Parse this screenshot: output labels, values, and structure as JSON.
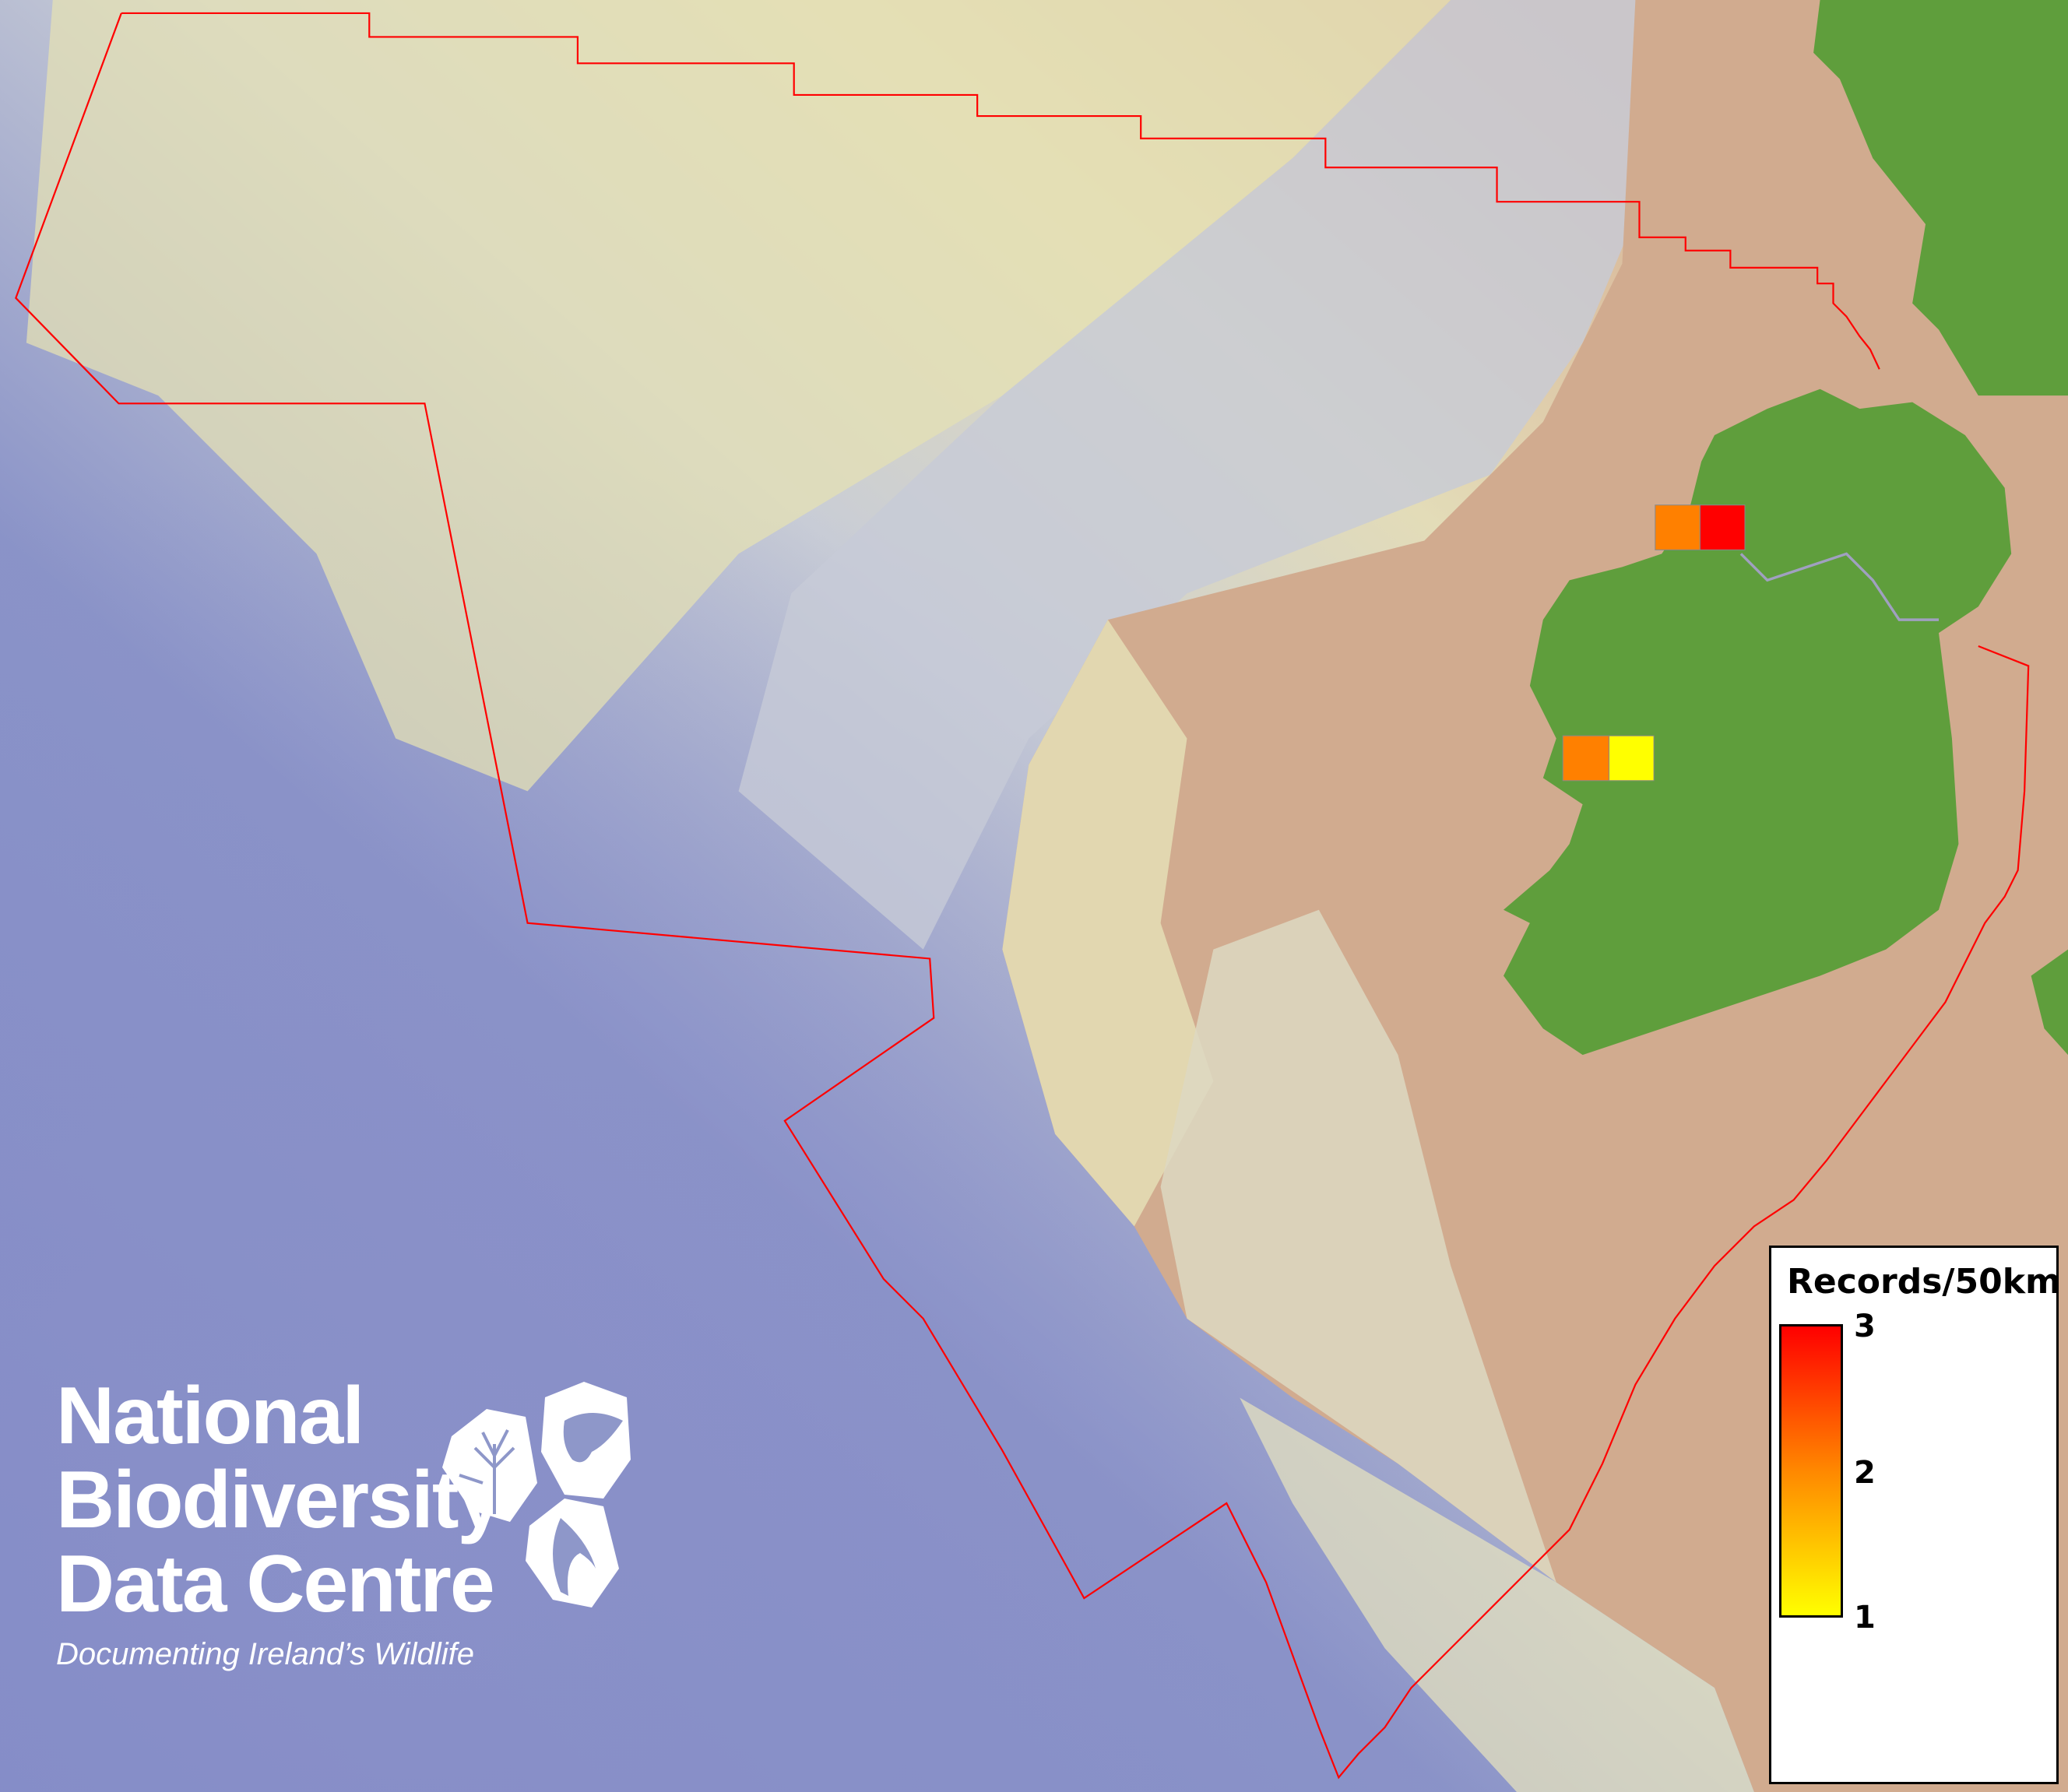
{
  "legend": {
    "title": "Records/50km",
    "ticks": [
      "3",
      "2",
      "1"
    ],
    "color_low": "#ffff00",
    "color_mid": "#ff8800",
    "color_high": "#ff0000"
  },
  "records": [
    {
      "value": 2,
      "color": "#ff8000"
    },
    {
      "value": 3,
      "color": "#ff0000"
    },
    {
      "value": 2,
      "color": "#ff8000"
    },
    {
      "value": 1,
      "color": "#ffff00"
    }
  ],
  "boundary_color": "#ff0000",
  "land_color": "#5f9e3c",
  "logo": {
    "line1": "National",
    "line2": "Biodiversity",
    "line3": "Data Centre",
    "tagline": "Documenting Ireland’s Wildlife",
    "icons": [
      "tree-icon",
      "butterfly-icon",
      "seahorse-icon"
    ]
  }
}
